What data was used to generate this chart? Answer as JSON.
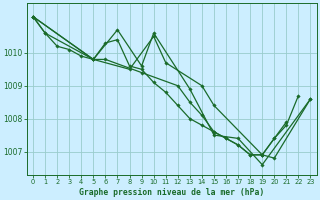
{
  "background_color": "#cceeff",
  "grid_color": "#99cccc",
  "line_color": "#1a6b2a",
  "title": "Graphe pression niveau de la mer (hPa)",
  "xlim": [
    -0.5,
    23.5
  ],
  "ylim": [
    1006.3,
    1011.5
  ],
  "yticks": [
    1007,
    1008,
    1009,
    1010
  ],
  "xticks": [
    0,
    1,
    2,
    3,
    4,
    5,
    6,
    7,
    8,
    9,
    10,
    11,
    12,
    13,
    14,
    15,
    16,
    17,
    18,
    19,
    20,
    21,
    22,
    23
  ],
  "series": [
    {
      "x": [
        0,
        1,
        2,
        3,
        4,
        5,
        6,
        7,
        8,
        9,
        10,
        11,
        12,
        13,
        14,
        15,
        16,
        17,
        18,
        19,
        20,
        21
      ],
      "y": [
        1011.1,
        1010.6,
        1010.2,
        1010.1,
        1009.9,
        1009.8,
        1010.3,
        1010.4,
        1009.6,
        1009.5,
        1009.1,
        1008.8,
        1008.4,
        1008.0,
        1007.8,
        1007.6,
        1007.4,
        1007.2,
        1006.9,
        1006.9,
        1007.4,
        1007.9
      ]
    },
    {
      "x": [
        0,
        5,
        7,
        9,
        10,
        13,
        15,
        17,
        19,
        23
      ],
      "y": [
        1011.1,
        1009.8,
        1010.7,
        1009.6,
        1010.6,
        1008.9,
        1007.5,
        1007.4,
        1006.6,
        1008.6
      ]
    },
    {
      "x": [
        0,
        5,
        8,
        10,
        11,
        14,
        15,
        19,
        20,
        23
      ],
      "y": [
        1011.1,
        1009.8,
        1009.5,
        1010.5,
        1009.7,
        1009.0,
        1008.4,
        1006.9,
        1006.8,
        1008.6
      ]
    },
    {
      "x": [
        0,
        1,
        5,
        6,
        9,
        12,
        13,
        14,
        15,
        16,
        17,
        18,
        19,
        20,
        21,
        22
      ],
      "y": [
        1011.1,
        1010.6,
        1009.8,
        1009.8,
        1009.4,
        1009.0,
        1008.5,
        1008.1,
        1007.6,
        1007.4,
        1007.2,
        1006.9,
        1006.9,
        1007.4,
        1007.8,
        1008.7
      ]
    }
  ]
}
